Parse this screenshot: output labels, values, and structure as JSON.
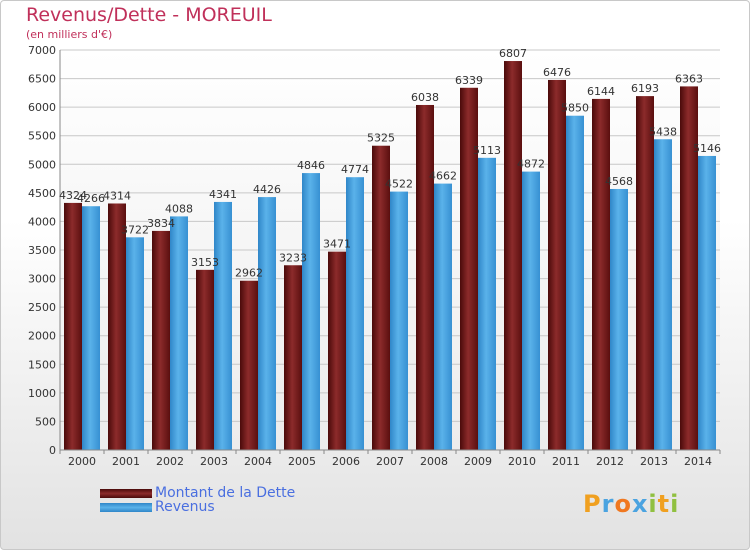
{
  "header": {
    "title": "Revenus/Dette - MOREUIL",
    "subtitle": "(en milliers d'€)"
  },
  "legend": {
    "debt_label": "Montant de la Dette",
    "revenue_label": "Revenus"
  },
  "logo": {
    "letters": [
      "P",
      "r",
      "o",
      "x",
      "i",
      "t",
      "i"
    ],
    "colors": [
      "#f0a020",
      "#4aa3e0",
      "#f07820",
      "#4aa3e0",
      "#90c040",
      "#f0a020",
      "#90c040"
    ]
  },
  "colors": {
    "debt": "#7a1f1f",
    "revenue": "#4aa3e0",
    "title": "#c0305a",
    "legend_text": "#4a6fe0"
  },
  "chart_data": {
    "type": "bar",
    "title": "Revenus/Dette - MOREUIL",
    "subtitle": "(en milliers d'€)",
    "categories": [
      "2000",
      "2001",
      "2002",
      "2003",
      "2004",
      "2005",
      "2006",
      "2007",
      "2008",
      "2009",
      "2010",
      "2011",
      "2012",
      "2013",
      "2014"
    ],
    "series": [
      {
        "name": "Montant de la Dette",
        "values": [
          4324,
          4314,
          3834,
          3153,
          2962,
          3233,
          3471,
          5325,
          6038,
          6339,
          6807,
          6476,
          6144,
          6193,
          6363
        ],
        "labels": [
          "4324",
          "4314",
          "3834",
          "3153",
          "2962",
          "3233",
          "3471",
          "5325",
          "6038",
          "6339",
          "6807",
          "6476",
          "6144",
          "6193",
          "6363"
        ]
      },
      {
        "name": "Revenus",
        "values": [
          4266,
          3722,
          4088,
          4341,
          4426,
          4846,
          4774,
          4522,
          4662,
          5113,
          4872,
          5850,
          4568,
          5438,
          5146
        ],
        "labels": [
          "4266",
          "3722",
          "4088",
          "4341",
          "4426",
          "4846",
          "4774",
          "4522",
          "4662",
          "5113",
          "4872",
          "5850",
          "4568",
          "5438",
          "5146"
        ]
      }
    ],
    "ylim": [
      0,
      7000
    ],
    "yticks": [
      "0",
      "500",
      "1000",
      "1500",
      "2000",
      "2500",
      "3000",
      "3500",
      "4000",
      "4500",
      "5000",
      "5500",
      "6000",
      "6500",
      "7000"
    ],
    "grid": true,
    "legend_position": "bottom-left"
  }
}
